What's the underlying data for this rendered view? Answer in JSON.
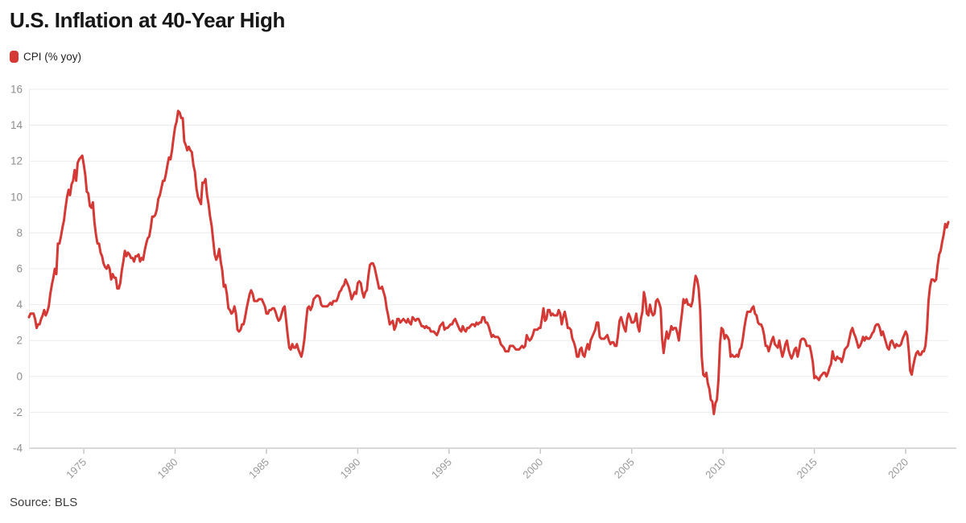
{
  "header": {
    "title": "U.S. Inflation at 40-Year High"
  },
  "legend": {
    "label": "CPI (% yoy)",
    "swatch_color": "#d43935"
  },
  "footer": {
    "source": "Source: BLS"
  },
  "colors": {
    "line": "#d43935",
    "gridline": "#ececec",
    "axis_line": "#d9d9d9",
    "tick_mark": "#c8c8c8",
    "y_label": "#8f8f8f",
    "x_label": "#9a9a9a"
  },
  "chart_data": {
    "type": "line",
    "title": "U.S. Inflation at 40-Year High",
    "legend_entries": [
      "CPI (% yoy)"
    ],
    "source_note": "Source: BLS",
    "xlabel": "",
    "ylabel": "",
    "ylim": [
      -4,
      16
    ],
    "y_ticks": [
      -4,
      -2,
      0,
      2,
      4,
      6,
      8,
      10,
      12,
      14,
      16
    ],
    "x_ticks": [
      1975,
      1980,
      1985,
      1990,
      1995,
      2000,
      2005,
      2010,
      2015,
      2020
    ],
    "grid": "horizontal",
    "legend_position": "top-left",
    "line_color": "#d43935",
    "line_width": 3,
    "series": [
      {
        "name": "CPI (% yoy)",
        "frequency": "monthly",
        "start": "1972-01",
        "end": "2022-05",
        "start_year_fraction": 1972.0,
        "values": [
          3.3,
          3.5,
          3.5,
          3.5,
          3.2,
          2.7,
          2.9,
          2.9,
          3.2,
          3.4,
          3.7,
          3.4,
          3.6,
          3.9,
          4.6,
          5.1,
          5.5,
          6.0,
          5.7,
          7.4,
          7.4,
          7.8,
          8.3,
          8.7,
          9.4,
          10.0,
          10.4,
          10.1,
          10.7,
          10.9,
          11.5,
          10.9,
          11.9,
          12.1,
          12.2,
          12.3,
          11.8,
          11.2,
          10.3,
          10.2,
          9.5,
          9.4,
          9.7,
          8.6,
          7.9,
          7.4,
          7.4,
          6.9,
          6.7,
          6.3,
          6.1,
          6.0,
          6.2,
          6.0,
          5.4,
          5.7,
          5.5,
          5.5,
          4.9,
          4.9,
          5.2,
          5.9,
          6.4,
          7.0,
          6.7,
          6.9,
          6.8,
          6.6,
          6.6,
          6.4,
          6.7,
          6.7,
          6.8,
          6.4,
          6.6,
          6.5,
          7.0,
          7.4,
          7.7,
          7.8,
          8.3,
          8.9,
          8.9,
          9.0,
          9.3,
          9.9,
          10.1,
          10.5,
          10.9,
          10.9,
          11.3,
          11.8,
          12.2,
          12.1,
          12.6,
          13.3,
          13.9,
          14.2,
          14.8,
          14.7,
          14.4,
          14.4,
          13.1,
          12.9,
          12.6,
          12.8,
          12.6,
          12.5,
          11.8,
          11.4,
          10.5,
          10.0,
          9.8,
          9.6,
          10.8,
          10.8,
          11.0,
          10.1,
          9.6,
          8.9,
          8.4,
          7.6,
          6.8,
          6.5,
          6.7,
          7.1,
          6.4,
          5.9,
          5.0,
          5.1,
          4.6,
          3.8,
          3.7,
          3.5,
          3.6,
          3.9,
          3.5,
          2.6,
          2.5,
          2.6,
          2.9,
          2.9,
          3.3,
          3.8,
          4.2,
          4.6,
          4.8,
          4.6,
          4.2,
          4.2,
          4.2,
          4.3,
          4.3,
          4.3,
          4.1,
          3.9,
          3.5,
          3.5,
          3.7,
          3.7,
          3.8,
          3.8,
          3.6,
          3.3,
          3.1,
          3.2,
          3.5,
          3.8,
          3.9,
          3.1,
          2.3,
          1.6,
          1.5,
          1.8,
          1.6,
          1.6,
          1.8,
          1.5,
          1.3,
          1.1,
          1.5,
          2.1,
          3.0,
          3.8,
          3.9,
          3.7,
          3.9,
          4.3,
          4.4,
          4.5,
          4.5,
          4.4,
          4.0,
          3.9,
          3.9,
          3.9,
          3.9,
          4.0,
          4.1,
          4.0,
          4.2,
          4.2,
          4.2,
          4.4,
          4.7,
          4.8,
          5.0,
          5.1,
          5.4,
          5.2,
          5.0,
          4.7,
          4.3,
          4.5,
          4.7,
          4.6,
          5.2,
          5.3,
          5.2,
          4.7,
          4.4,
          4.7,
          4.8,
          5.6,
          6.2,
          6.3,
          6.3,
          6.1,
          5.7,
          5.3,
          4.9,
          4.9,
          5.0,
          4.7,
          4.4,
          3.8,
          3.4,
          2.9,
          3.0,
          3.1,
          2.6,
          2.8,
          3.2,
          3.2,
          3.0,
          3.1,
          3.2,
          3.1,
          3.0,
          3.2,
          3.0,
          2.9,
          3.3,
          3.2,
          3.1,
          3.2,
          3.2,
          3.0,
          2.8,
          2.8,
          2.7,
          2.8,
          2.7,
          2.7,
          2.5,
          2.5,
          2.5,
          2.4,
          2.3,
          2.5,
          2.8,
          2.9,
          3.0,
          2.6,
          2.7,
          2.7,
          2.8,
          2.9,
          2.9,
          3.1,
          3.2,
          3.0,
          2.8,
          2.6,
          2.5,
          2.8,
          2.6,
          2.5,
          2.7,
          2.7,
          2.8,
          2.9,
          2.9,
          2.8,
          3.0,
          2.9,
          3.0,
          3.0,
          3.3,
          3.3,
          3.0,
          3.0,
          2.8,
          2.5,
          2.2,
          2.3,
          2.2,
          2.2,
          2.2,
          2.1,
          1.8,
          1.7,
          1.6,
          1.4,
          1.4,
          1.4,
          1.7,
          1.7,
          1.7,
          1.6,
          1.5,
          1.5,
          1.5,
          1.6,
          1.7,
          1.6,
          1.7,
          2.3,
          2.1,
          2.0,
          2.1,
          2.3,
          2.6,
          2.6,
          2.6,
          2.7,
          2.7,
          3.2,
          3.8,
          3.1,
          3.2,
          3.7,
          3.7,
          3.4,
          3.5,
          3.4,
          3.4,
          3.4,
          3.7,
          3.5,
          2.9,
          3.3,
          3.6,
          3.2,
          2.7,
          2.7,
          2.6,
          2.1,
          1.9,
          1.6,
          1.1,
          1.1,
          1.5,
          1.6,
          1.2,
          1.1,
          1.5,
          1.8,
          1.5,
          2.0,
          2.2,
          2.4,
          2.6,
          3.0,
          3.0,
          2.2,
          2.1,
          2.1,
          2.1,
          2.2,
          2.3,
          2.0,
          1.8,
          1.9,
          1.9,
          1.7,
          1.7,
          2.3,
          3.1,
          3.3,
          3.0,
          2.7,
          2.5,
          3.2,
          3.5,
          3.3,
          3.0,
          3.0,
          3.1,
          3.5,
          2.8,
          2.5,
          3.2,
          3.6,
          4.7,
          4.3,
          3.5,
          3.4,
          4.0,
          3.6,
          3.4,
          3.5,
          4.2,
          4.3,
          4.1,
          3.8,
          2.1,
          1.3,
          2.0,
          2.5,
          2.1,
          2.4,
          2.8,
          2.6,
          2.7,
          2.7,
          2.4,
          2.0,
          2.8,
          3.5,
          4.3,
          4.1,
          4.3,
          4.0,
          4.0,
          3.9,
          4.2,
          5.0,
          5.6,
          5.4,
          4.9,
          3.7,
          1.1,
          0.1,
          0.0,
          0.2,
          -0.4,
          -0.7,
          -1.3,
          -1.4,
          -2.1,
          -1.5,
          -1.3,
          -0.2,
          1.8,
          2.7,
          2.6,
          2.1,
          2.3,
          2.2,
          2.0,
          1.1,
          1.2,
          1.1,
          1.1,
          1.2,
          1.1,
          1.5,
          1.6,
          2.1,
          2.7,
          3.2,
          3.6,
          3.6,
          3.6,
          3.8,
          3.9,
          3.5,
          3.4,
          3.0,
          2.9,
          2.9,
          2.7,
          2.3,
          1.7,
          1.7,
          1.4,
          1.7,
          2.0,
          2.2,
          1.8,
          1.7,
          1.6,
          2.0,
          1.5,
          1.1,
          1.4,
          1.8,
          2.0,
          1.5,
          1.2,
          1.0,
          1.2,
          1.5,
          1.6,
          1.1,
          1.5,
          2.0,
          2.1,
          2.1,
          2.0,
          1.7,
          1.7,
          1.7,
          1.3,
          0.8,
          -0.1,
          0.0,
          -0.1,
          -0.2,
          0.0,
          0.1,
          0.2,
          0.2,
          0.0,
          0.2,
          0.5,
          0.7,
          1.4,
          1.0,
          0.9,
          1.1,
          1.0,
          1.0,
          0.8,
          1.1,
          1.5,
          1.6,
          1.7,
          2.1,
          2.5,
          2.7,
          2.4,
          2.2,
          1.9,
          1.6,
          1.7,
          1.9,
          2.2,
          2.0,
          2.2,
          2.1,
          2.1,
          2.2,
          2.4,
          2.5,
          2.8,
          2.9,
          2.9,
          2.7,
          2.3,
          2.5,
          2.2,
          1.9,
          1.6,
          1.5,
          1.9,
          2.0,
          1.8,
          1.6,
          1.8,
          1.7,
          1.7,
          1.8,
          2.1,
          2.3,
          2.5,
          2.3,
          1.5,
          0.3,
          0.1,
          0.6,
          1.0,
          1.3,
          1.4,
          1.2,
          1.2,
          1.4,
          1.4,
          1.7,
          2.6,
          4.2,
          5.0,
          5.4,
          5.4,
          5.3,
          5.4,
          6.2,
          6.8,
          7.0,
          7.5,
          7.9,
          8.5,
          8.3,
          8.6
        ]
      }
    ]
  }
}
